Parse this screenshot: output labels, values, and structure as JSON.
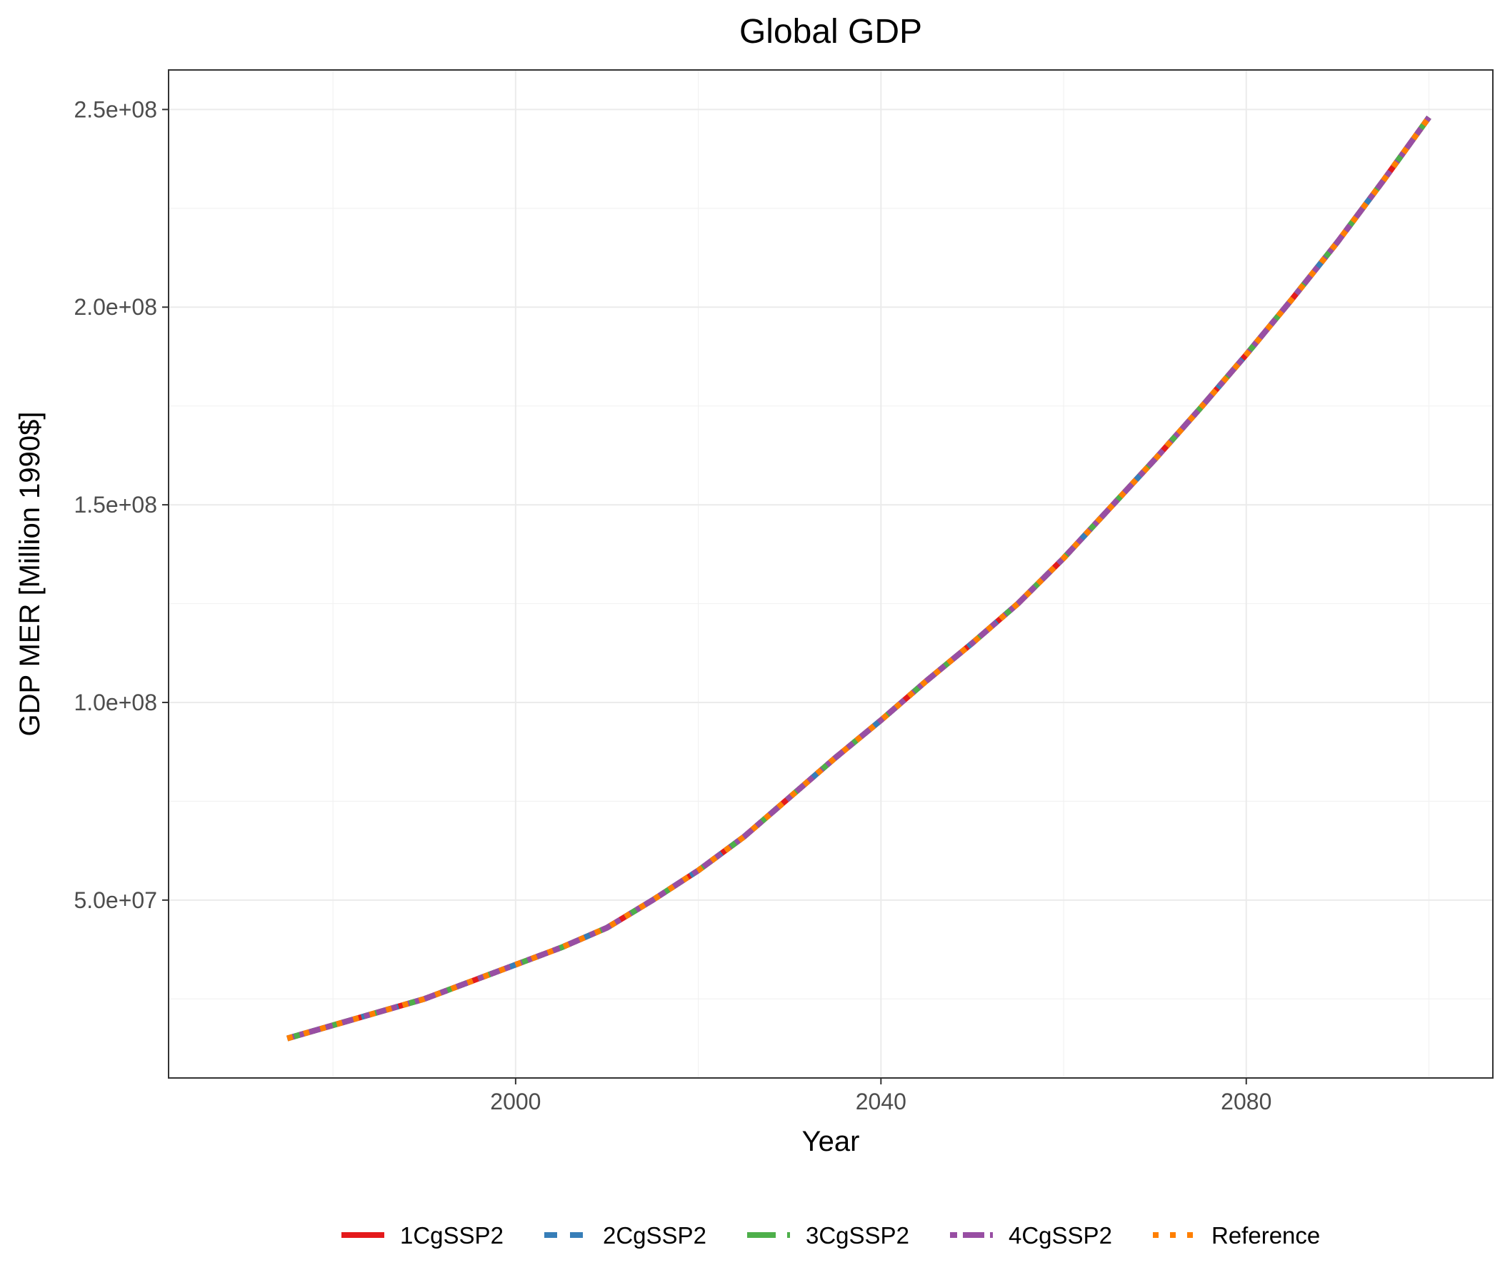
{
  "chart_data": {
    "type": "line",
    "title": "Global GDP",
    "xlabel": "Year",
    "ylabel": "GDP MER [Million 1990$]",
    "xlim": [
      1962,
      2107
    ],
    "ylim": [
      5000000,
      260000000
    ],
    "x_ticks": [
      2000,
      2040,
      2080
    ],
    "x_tick_labels": [
      "2000",
      "2040",
      "2080"
    ],
    "x_minor_ticks": [
      1980,
      2020,
      2060,
      2100
    ],
    "y_ticks": [
      50000000,
      100000000,
      150000000,
      200000000,
      250000000
    ],
    "y_tick_labels": [
      "5.0e+07",
      "1.0e+08",
      "1.5e+08",
      "2.0e+08",
      "2.5e+08"
    ],
    "y_minor_ticks": [
      25000000,
      75000000,
      125000000,
      175000000,
      225000000
    ],
    "grid": true,
    "legend_position": "bottom",
    "x": [
      1975,
      1990,
      2005,
      2010,
      2015,
      2020,
      2025,
      2030,
      2035,
      2040,
      2045,
      2050,
      2055,
      2060,
      2065,
      2070,
      2075,
      2080,
      2085,
      2090,
      2095,
      2100
    ],
    "series": [
      {
        "name": "1CgSSP2",
        "color": "#e41a1c",
        "dash": "solid",
        "values": [
          15000000,
          25000000,
          38000000,
          43000000,
          50000000,
          57500000,
          66000000,
          76000000,
          86000000,
          95500000,
          105500000,
          115000000,
          125000000,
          136500000,
          149000000,
          161500000,
          174500000,
          188000000,
          202000000,
          216500000,
          232000000,
          248000000
        ]
      },
      {
        "name": "2CgSSP2",
        "color": "#377eb8",
        "dash": "dashed",
        "values": [
          15000000,
          25000000,
          38000000,
          43000000,
          50000000,
          57500000,
          66000000,
          76000000,
          86000000,
          95500000,
          105500000,
          115000000,
          125000000,
          136500000,
          149000000,
          161500000,
          174500000,
          188000000,
          202000000,
          216500000,
          232000000,
          248000000
        ]
      },
      {
        "name": "3CgSSP2",
        "color": "#4daf4a",
        "dash": "longdash",
        "values": [
          15000000,
          25000000,
          38000000,
          43000000,
          50000000,
          57500000,
          66000000,
          76000000,
          86000000,
          95500000,
          105500000,
          115000000,
          125000000,
          136500000,
          149000000,
          161500000,
          174500000,
          188000000,
          202000000,
          216500000,
          232000000,
          248000000
        ]
      },
      {
        "name": "4CgSSP2",
        "color": "#984ea3",
        "dash": "twodash",
        "values": [
          15000000,
          25000000,
          38000000,
          43000000,
          50000000,
          57500000,
          66000000,
          76000000,
          86000000,
          95500000,
          105500000,
          115000000,
          125000000,
          136500000,
          149000000,
          161500000,
          174500000,
          188000000,
          202000000,
          216500000,
          232000000,
          248000000
        ]
      },
      {
        "name": "Reference",
        "color": "#ff7f00",
        "dash": "dotted",
        "values": [
          15000000,
          25000000,
          38000000,
          43000000,
          50000000,
          57500000,
          66000000,
          76000000,
          86000000,
          95500000,
          105500000,
          115000000,
          125000000,
          136500000,
          149000000,
          161500000,
          174500000,
          188000000,
          202000000,
          216500000,
          232000000,
          248000000
        ]
      }
    ]
  }
}
